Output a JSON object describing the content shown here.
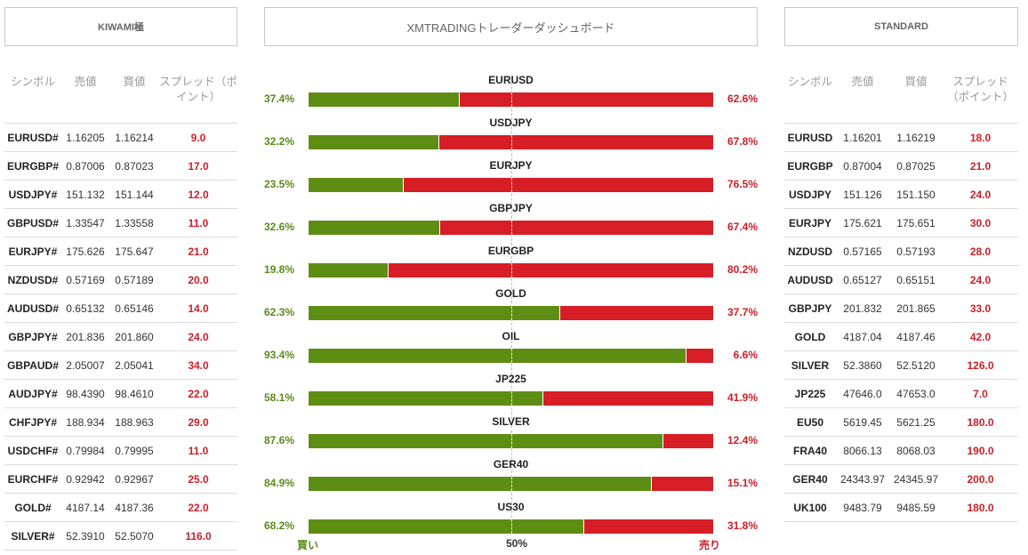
{
  "headers": {
    "left": "KIWAMI極",
    "center": "XMTRADINGトレーダーダッシュボード",
    "right": "STANDARD"
  },
  "table_columns": {
    "symbol": "シンボル",
    "bid": "売値",
    "ask": "買値",
    "spread": "スプレッド（ポイント）"
  },
  "kiwami_rows": [
    {
      "symbol": "EURUSD#",
      "bid": "1.16205",
      "ask": "1.16214",
      "spread": "9.0"
    },
    {
      "symbol": "EURGBP#",
      "bid": "0.87006",
      "ask": "0.87023",
      "spread": "17.0"
    },
    {
      "symbol": "USDJPY#",
      "bid": "151.132",
      "ask": "151.144",
      "spread": "12.0"
    },
    {
      "symbol": "GBPUSD#",
      "bid": "1.33547",
      "ask": "1.33558",
      "spread": "11.0"
    },
    {
      "symbol": "EURJPY#",
      "bid": "175.626",
      "ask": "175.647",
      "spread": "21.0"
    },
    {
      "symbol": "NZDUSD#",
      "bid": "0.57169",
      "ask": "0.57189",
      "spread": "20.0"
    },
    {
      "symbol": "AUDUSD#",
      "bid": "0.65132",
      "ask": "0.65146",
      "spread": "14.0"
    },
    {
      "symbol": "GBPJPY#",
      "bid": "201.836",
      "ask": "201.860",
      "spread": "24.0"
    },
    {
      "symbol": "GBPAUD#",
      "bid": "2.05007",
      "ask": "2.05041",
      "spread": "34.0"
    },
    {
      "symbol": "AUDJPY#",
      "bid": "98.4390",
      "ask": "98.4610",
      "spread": "22.0"
    },
    {
      "symbol": "CHFJPY#",
      "bid": "188.934",
      "ask": "188.963",
      "spread": "29.0"
    },
    {
      "symbol": "USDCHF#",
      "bid": "0.79984",
      "ask": "0.79995",
      "spread": "11.0"
    },
    {
      "symbol": "EURCHF#",
      "bid": "0.92942",
      "ask": "0.92967",
      "spread": "25.0"
    },
    {
      "symbol": "GOLD#",
      "bid": "4187.14",
      "ask": "4187.36",
      "spread": "22.0"
    },
    {
      "symbol": "SILVER#",
      "bid": "52.3910",
      "ask": "52.5070",
      "spread": "116.0"
    }
  ],
  "standard_rows": [
    {
      "symbol": "EURUSD",
      "bid": "1.16201",
      "ask": "1.16219",
      "spread": "18.0"
    },
    {
      "symbol": "EURGBP",
      "bid": "0.87004",
      "ask": "0.87025",
      "spread": "21.0"
    },
    {
      "symbol": "USDJPY",
      "bid": "151.126",
      "ask": "151.150",
      "spread": "24.0"
    },
    {
      "symbol": "EURJPY",
      "bid": "175.621",
      "ask": "175.651",
      "spread": "30.0"
    },
    {
      "symbol": "NZDUSD",
      "bid": "0.57165",
      "ask": "0.57193",
      "spread": "28.0"
    },
    {
      "symbol": "AUDUSD",
      "bid": "0.65127",
      "ask": "0.65151",
      "spread": "24.0"
    },
    {
      "symbol": "GBPJPY",
      "bid": "201.832",
      "ask": "201.865",
      "spread": "33.0"
    },
    {
      "symbol": "GOLD",
      "bid": "4187.04",
      "ask": "4187.46",
      "spread": "42.0"
    },
    {
      "symbol": "SILVER",
      "bid": "52.3860",
      "ask": "52.5120",
      "spread": "126.0"
    },
    {
      "symbol": "JP225",
      "bid": "47646.0",
      "ask": "47653.0",
      "spread": "7.0"
    },
    {
      "symbol": "EU50",
      "bid": "5619.45",
      "ask": "5621.25",
      "spread": "180.0"
    },
    {
      "symbol": "FRA40",
      "bid": "8066.13",
      "ask": "8068.03",
      "spread": "190.0"
    },
    {
      "symbol": "GER40",
      "bid": "24343.97",
      "ask": "24345.97",
      "spread": "200.0"
    },
    {
      "symbol": "UK100",
      "bid": "9483.79",
      "ask": "9485.59",
      "spread": "180.0"
    }
  ],
  "sentiment": [
    {
      "symbol": "EURUSD",
      "buy_pct": 37.4,
      "buy": "37.4%",
      "sell": "62.6%"
    },
    {
      "symbol": "USDJPY",
      "buy_pct": 32.2,
      "buy": "32.2%",
      "sell": "67.8%"
    },
    {
      "symbol": "EURJPY",
      "buy_pct": 23.5,
      "buy": "23.5%",
      "sell": "76.5%"
    },
    {
      "symbol": "GBPJPY",
      "buy_pct": 32.6,
      "buy": "32.6%",
      "sell": "67.4%"
    },
    {
      "symbol": "EURGBP",
      "buy_pct": 19.8,
      "buy": "19.8%",
      "sell": "80.2%"
    },
    {
      "symbol": "GOLD",
      "buy_pct": 62.3,
      "buy": "62.3%",
      "sell": "37.7%"
    },
    {
      "symbol": "OIL",
      "buy_pct": 93.4,
      "buy": "93.4%",
      "sell": "6.6%"
    },
    {
      "symbol": "JP225",
      "buy_pct": 58.1,
      "buy": "58.1%",
      "sell": "41.9%"
    },
    {
      "symbol": "SILVER",
      "buy_pct": 87.6,
      "buy": "87.6%",
      "sell": "12.4%"
    },
    {
      "symbol": "GER40",
      "buy_pct": 84.9,
      "buy": "84.9%",
      "sell": "15.1%"
    },
    {
      "symbol": "US30",
      "buy_pct": 68.2,
      "buy": "68.2%",
      "sell": "31.8%"
    }
  ],
  "legend": {
    "buy": "買い",
    "mid": "50%",
    "sell": "売り"
  },
  "colors": {
    "buy": "#5e8d14",
    "sell": "#d71d26",
    "spread_text": "#cc1f28"
  }
}
